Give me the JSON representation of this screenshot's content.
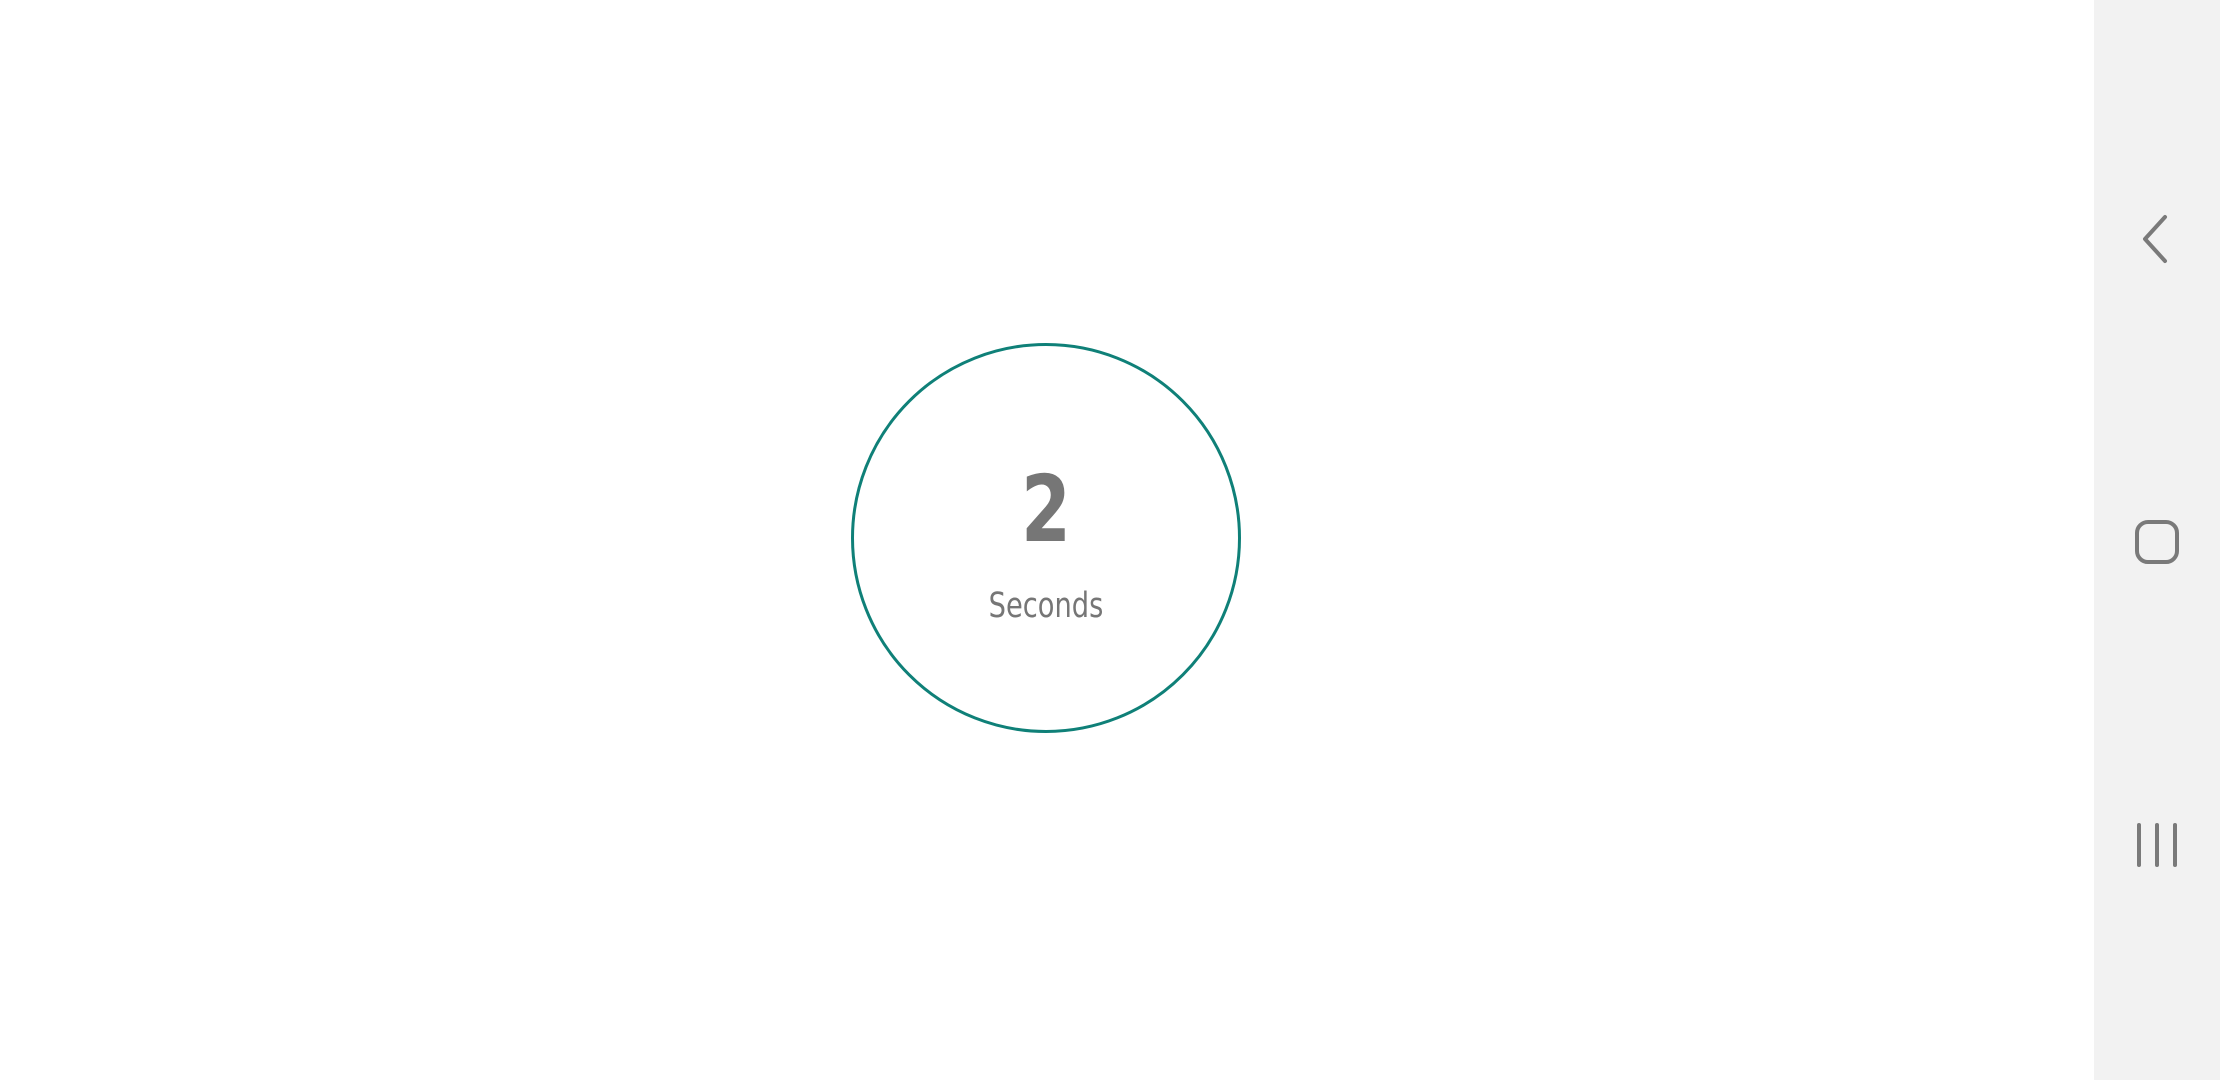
{
  "timer": {
    "value": "2",
    "unit": "Seconds",
    "ring_color": "#0f8078",
    "text_color": "#767676"
  },
  "navigation_bar": {
    "background": "#f2f2f2",
    "icon_color": "#7a7a7a",
    "buttons": [
      {
        "name": "back",
        "icon": "chevron-left-icon"
      },
      {
        "name": "home",
        "icon": "rounded-square-icon"
      },
      {
        "name": "recents",
        "icon": "three-vertical-lines-icon"
      }
    ]
  }
}
